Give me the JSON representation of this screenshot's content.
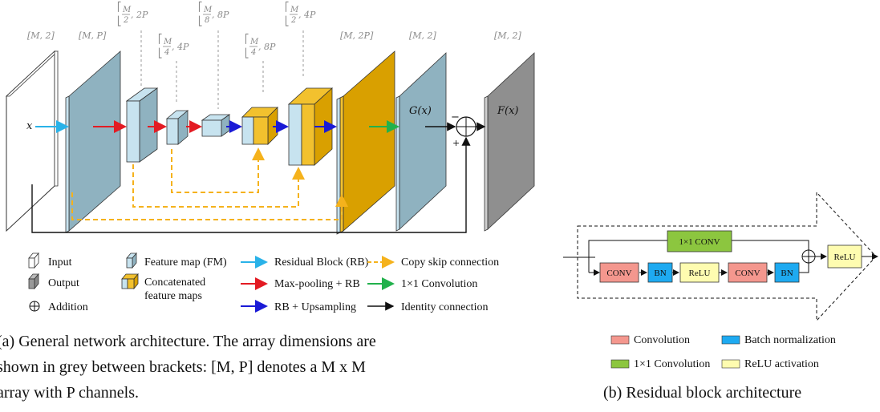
{
  "figure_a": {
    "dims": {
      "d1": "[M, 2]",
      "d2": "[M, P]",
      "d3": ", 2P",
      "d4": ", 4P",
      "d5": ", 8P",
      "d6": ", 8P",
      "d7": ", 4P",
      "d8": "[M, 2P]",
      "d9": "[M, 2]",
      "d10": "[M, 2]",
      "frac_num": "M",
      "d3_den": "2",
      "d4_den": "4",
      "d5_den": "8",
      "d6_den": "4",
      "d7_den": "2"
    },
    "labels": {
      "input_x": "x",
      "g_x": "G(x)",
      "f_x": "F(x)",
      "minus": "−",
      "plus": "+"
    },
    "legend": {
      "input": "Input",
      "output": "Output",
      "addition": "Addition",
      "feature_map": "Feature map (FM)",
      "concat_1": "Concatenated",
      "concat_2": "feature maps",
      "residual_block": "Residual Block (RB)",
      "maxpool_rb": "Max-pooling + RB",
      "rb_upsampling": "RB + Upsampling",
      "copy_skip": "Copy skip connection",
      "conv1x1": "1×1 Convolution",
      "identity": "Identity connection"
    },
    "caption_1": "(a) General network architecture. The array dimensions are",
    "caption_2": "shown in grey between brackets: [M, P] denotes a M x M",
    "caption_3": "array with P channels."
  },
  "figure_b": {
    "blocks": {
      "conv1x1": "1×1 CONV",
      "conv_a": "CONV",
      "bn_a": "BN",
      "relu_a": "ReLU",
      "conv_b": "CONV",
      "bn_b": "BN",
      "relu_out": "ReLU"
    },
    "legend": {
      "convolution": "Convolution",
      "batch_norm": "Batch normalization",
      "conv1x1": "1×1 Convolution",
      "relu": "ReLU activation"
    },
    "caption": "(b) Residual block architecture"
  },
  "colors": {
    "fm_face": "#8fb2c0",
    "fm_light": "#c7e3ef",
    "gold": "#d9a000",
    "gold_light": "#f2c12e",
    "grey": "#8a8a8a",
    "cyan": "#29b2e8",
    "red": "#e31b23",
    "blue": "#1a1ad6",
    "yellow_dash": "#f5b21c",
    "green": "#22b14c",
    "conv_salmon": "#f4978e",
    "bn_blue": "#1eaaf1",
    "conv1x1_green": "#8cc63f",
    "relu_yellow": "#fefcb0"
  }
}
